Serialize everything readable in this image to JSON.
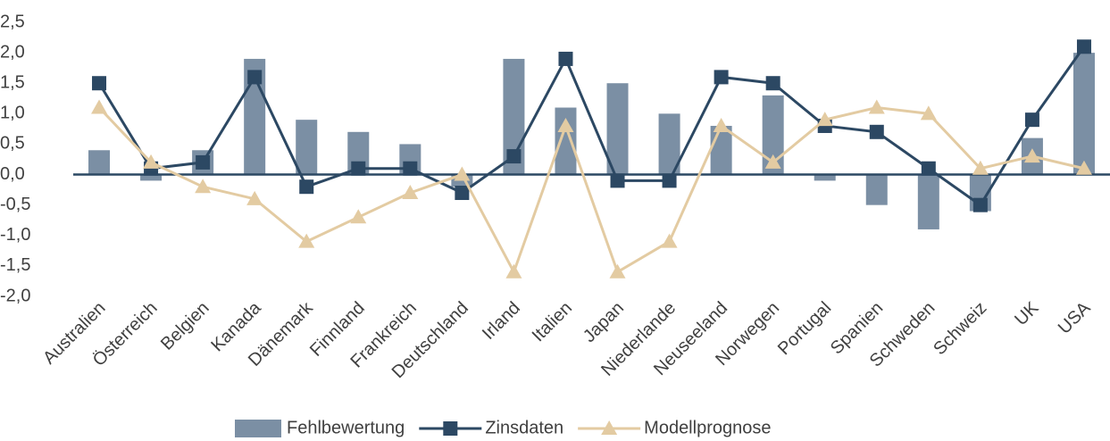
{
  "chart_data": {
    "type": "bar-line",
    "categories": [
      "Australien",
      "Österreich",
      "Belgien",
      "Kanada",
      "Dänemark",
      "Finnland",
      "Frankreich",
      "Deutschland",
      "Irland",
      "Italien",
      "Japan",
      "Niederlande",
      "Neuseeland",
      "Norwegen",
      "Portugal",
      "Spanien",
      "Schweden",
      "Schweiz",
      "UK",
      "USA"
    ],
    "series": [
      {
        "name": "Fehlbewertung",
        "type": "bar",
        "color": "#7b8fa4",
        "values": [
          0.4,
          -0.1,
          0.4,
          1.9,
          0.9,
          0.7,
          0.5,
          -0.2,
          1.9,
          1.1,
          1.5,
          1.0,
          0.8,
          1.3,
          -0.1,
          -0.5,
          -0.9,
          -0.6,
          0.6,
          2.0
        ]
      },
      {
        "name": "Zinsdaten",
        "type": "line",
        "marker": "square",
        "color": "#2c4863",
        "values": [
          1.5,
          0.1,
          0.2,
          1.6,
          -0.2,
          0.1,
          0.1,
          -0.3,
          0.3,
          1.9,
          -0.1,
          -0.1,
          1.6,
          1.5,
          0.8,
          0.7,
          0.1,
          -0.5,
          0.9,
          2.1
        ]
      },
      {
        "name": "Modellprognose",
        "type": "line",
        "marker": "triangle",
        "color": "#e3cba2",
        "values": [
          1.1,
          0.2,
          -0.2,
          -0.4,
          -1.1,
          -0.7,
          -0.3,
          0.0,
          -1.6,
          0.8,
          -1.6,
          -1.1,
          0.8,
          0.2,
          0.9,
          1.1,
          1.0,
          0.1,
          0.3,
          0.1
        ]
      }
    ],
    "ylim": [
      -2.0,
      2.5
    ],
    "yticks": [
      {
        "value": 2.5,
        "label": "2,5"
      },
      {
        "value": 2.0,
        "label": "2,0"
      },
      {
        "value": 1.5,
        "label": "1,5"
      },
      {
        "value": 1.0,
        "label": "1,0"
      },
      {
        "value": 0.5,
        "label": "0,5"
      },
      {
        "value": 0,
        "label": "0,0"
      },
      {
        "value": -0.5,
        "label": "-0,5"
      },
      {
        "value": -1.0,
        "label": "-1,0"
      },
      {
        "value": -1.5,
        "label": "-1,5"
      },
      {
        "value": -2.0,
        "label": "-2,0"
      }
    ],
    "grid": false,
    "legend": "bottom"
  }
}
